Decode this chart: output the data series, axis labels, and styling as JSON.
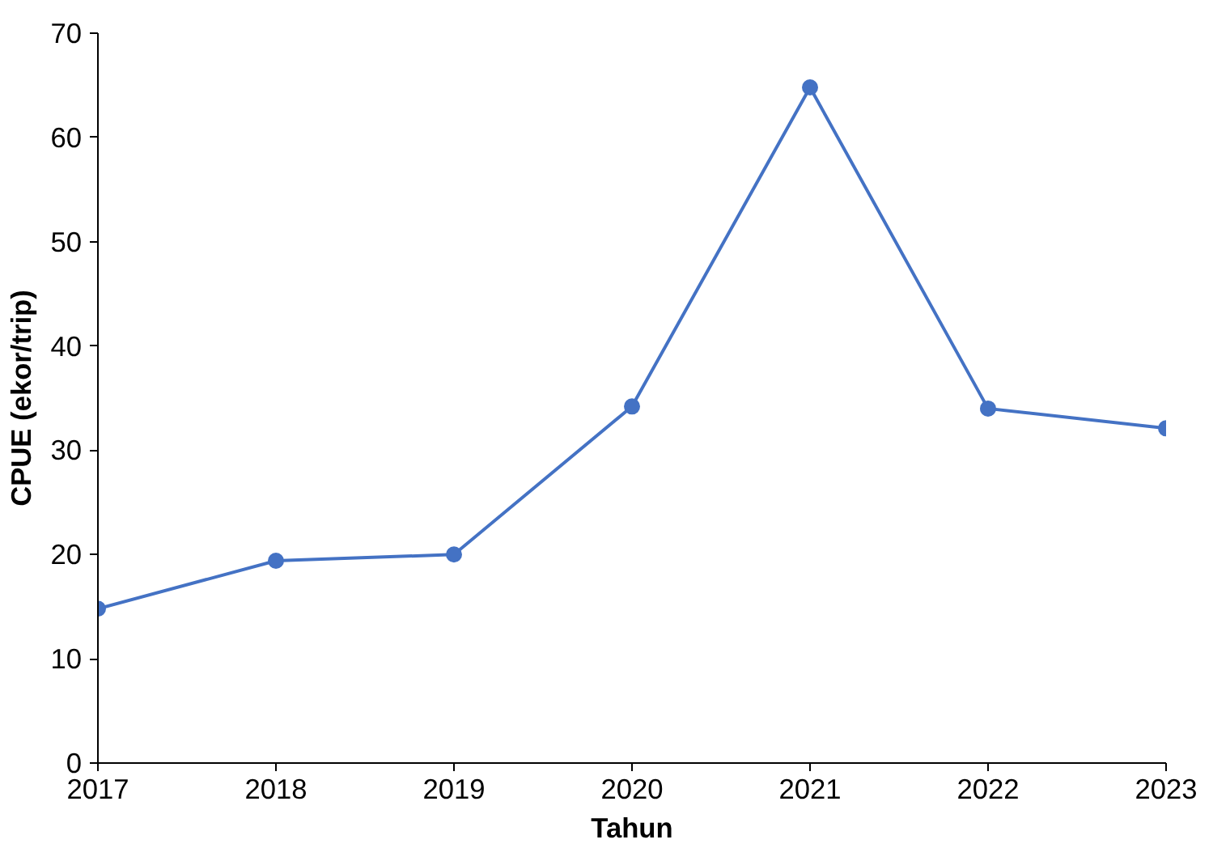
{
  "chart_data": {
    "type": "line",
    "xlabel": "Tahun",
    "ylabel": "CPUE (ekor/trip)",
    "x": [
      2017,
      2018,
      2019,
      2020,
      2021,
      2022,
      2023
    ],
    "series": [
      {
        "color": "#4472c4",
        "values": [
          14.8,
          19.4,
          20.0,
          34.2,
          64.8,
          34.0,
          32.1
        ]
      }
    ],
    "xlim": [
      2017,
      2023
    ],
    "xticks": [
      2017,
      2018,
      2019,
      2020,
      2021,
      2022,
      2023
    ],
    "ylim": [
      0,
      70
    ],
    "yticks": [
      0,
      10,
      20,
      30,
      40,
      50,
      60,
      70
    ],
    "grid": false,
    "marker": "circle",
    "line_style": "solid"
  }
}
